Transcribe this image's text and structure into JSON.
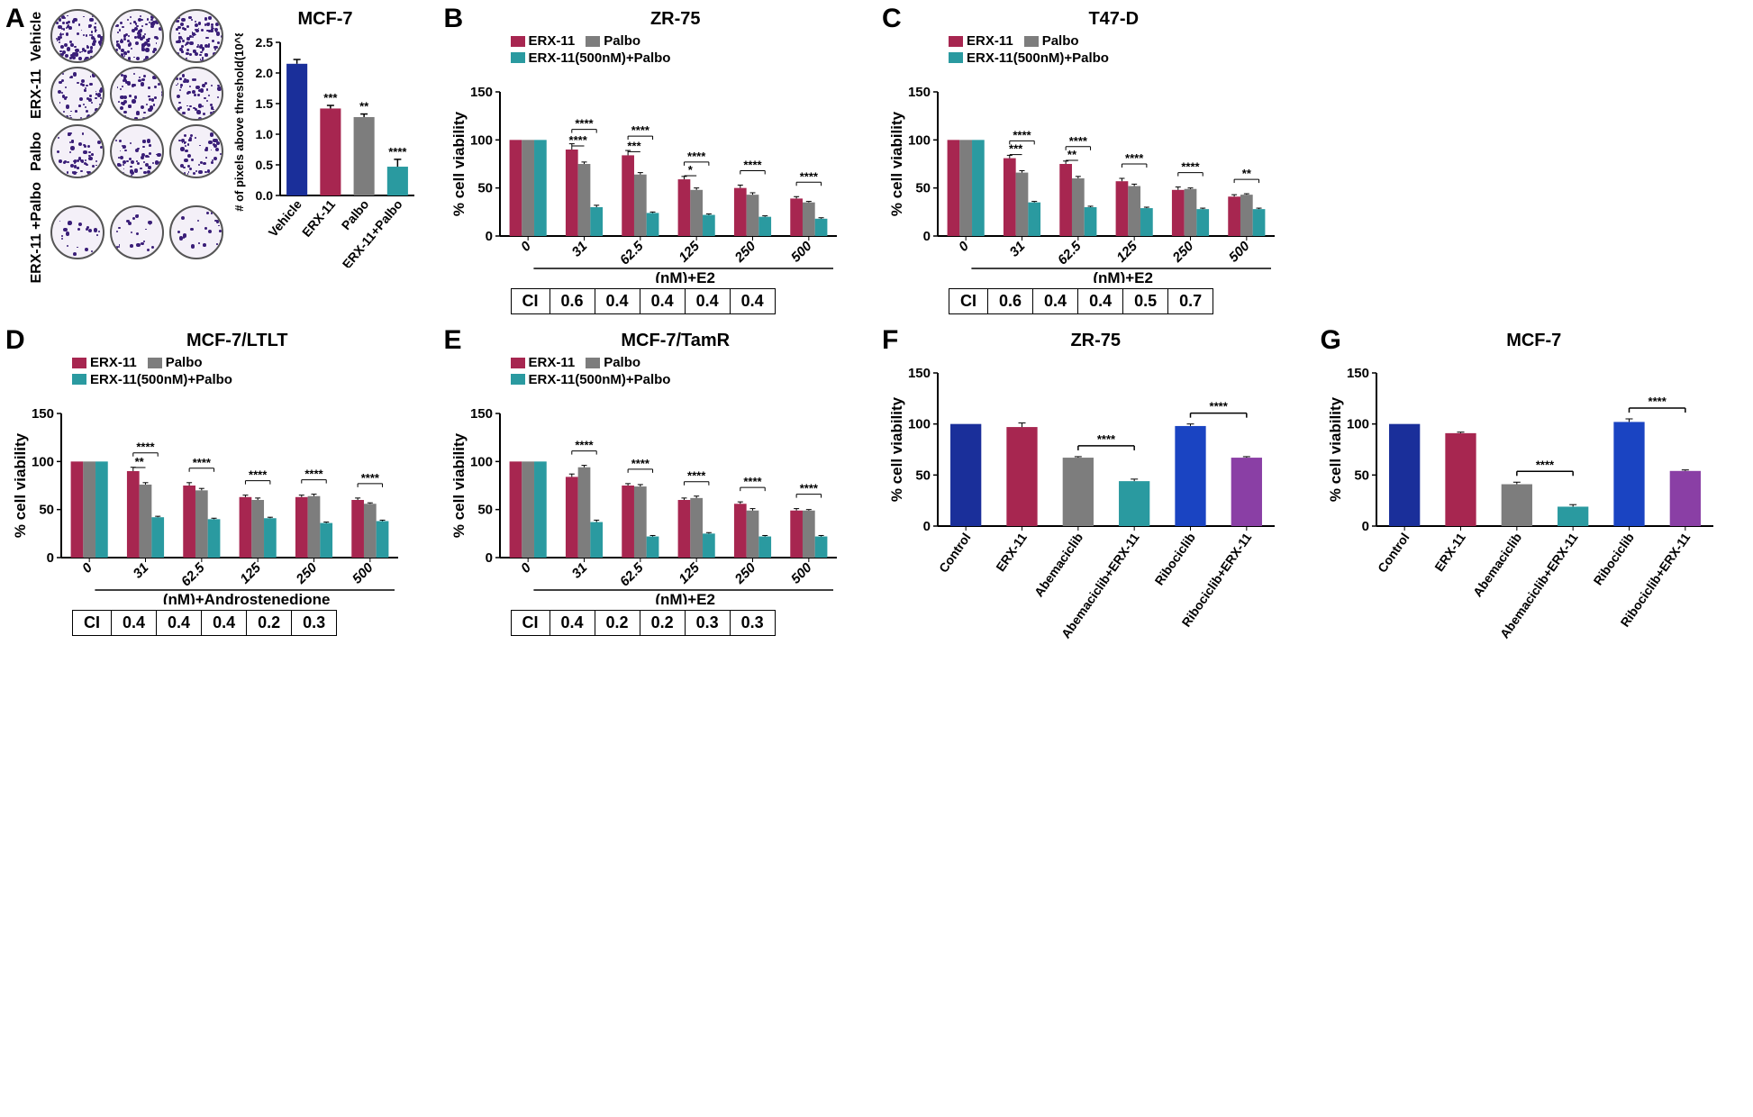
{
  "colors": {
    "erx": "#a72650",
    "palbo": "#7d7d7d",
    "combo": "#2a9aa0",
    "vehicle": "#1a2f9a",
    "ribo": "#1a44c2",
    "riboerx": "#8a3fa5",
    "axis": "#000000",
    "grid": "#cccccc",
    "bg": "#ffffff"
  },
  "panels": {
    "A": {
      "letter": "A",
      "title": "MCF-7",
      "row_labels": [
        "Vehicle",
        "ERX-11",
        "Palbo",
        "ERX-11\n+Palbo"
      ],
      "plate_density": [
        0.9,
        0.55,
        0.5,
        0.18
      ],
      "chart": {
        "ytitle": "# of pixels above threshold(10^8)",
        "ylim": [
          0,
          2.5
        ],
        "ytick_step": 0.5,
        "cats": [
          "Vehicle",
          "ERX-11",
          "Palbo",
          "ERX-11+Palbo"
        ],
        "vals": [
          2.15,
          1.42,
          1.28,
          0.47
        ],
        "errs": [
          0.07,
          0.05,
          0.05,
          0.12
        ],
        "colors": [
          "vehicle",
          "erx",
          "palbo",
          "combo"
        ],
        "sig": [
          "",
          "***",
          "**",
          "****"
        ],
        "bar_width": 0.62
      }
    },
    "B": {
      "letter": "B",
      "title": "ZR-75",
      "legend": [
        [
          "ERX-11",
          "erx"
        ],
        [
          "Palbo",
          "palbo"
        ],
        [
          "ERX-11(500nM)+Palbo",
          "combo"
        ]
      ],
      "ytitle": "% cell viability",
      "ylim": [
        0,
        150
      ],
      "ytick_step": 50,
      "xcats": [
        "0",
        "31",
        "62.5",
        "125",
        "250",
        "500"
      ],
      "xcap": "(nM)+E2",
      "series": {
        "erx": [
          100,
          90,
          84,
          59,
          50,
          39
        ],
        "palbo": [
          100,
          75,
          64,
          48,
          43,
          35
        ],
        "combo": [
          100,
          30,
          24,
          22,
          20,
          18
        ]
      },
      "errs": {
        "erx": [
          0,
          6,
          5,
          3,
          3,
          2
        ],
        "palbo": [
          0,
          2,
          2,
          2,
          2,
          1
        ],
        "combo": [
          0,
          2,
          1,
          1,
          1,
          1
        ]
      },
      "sig_top": [
        "",
        "****",
        "****",
        "****",
        "****",
        "****"
      ],
      "sig_bot": [
        "",
        "****",
        "***",
        "*",
        "",
        ""
      ],
      "ci": [
        "CI",
        "0.6",
        "0.4",
        "0.4",
        "0.4",
        "0.4"
      ]
    },
    "C": {
      "letter": "C",
      "title": "T47-D",
      "legend": [
        [
          "ERX-11",
          "erx"
        ],
        [
          "Palbo",
          "palbo"
        ],
        [
          "ERX-11(500nM)+Palbo",
          "combo"
        ]
      ],
      "ytitle": "% cell viability",
      "ylim": [
        0,
        150
      ],
      "ytick_step": 50,
      "xcats": [
        "0",
        "31",
        "62.5",
        "125",
        "250",
        "500"
      ],
      "xcap": "(nM)+E2",
      "series": {
        "erx": [
          100,
          81,
          75,
          57,
          48,
          41
        ],
        "palbo": [
          100,
          66,
          60,
          52,
          49,
          43
        ],
        "combo": [
          100,
          35,
          30,
          29,
          28,
          28
        ]
      },
      "errs": {
        "erx": [
          0,
          3,
          3,
          3,
          3,
          2
        ],
        "palbo": [
          0,
          2,
          2,
          2,
          1,
          1
        ],
        "combo": [
          0,
          1,
          1,
          1,
          1,
          1
        ]
      },
      "sig_top": [
        "",
        "****",
        "****",
        "****",
        "****",
        "**"
      ],
      "sig_bot": [
        "",
        "***",
        "**",
        "",
        "",
        ""
      ],
      "ci": [
        "CI",
        "0.6",
        "0.4",
        "0.4",
        "0.5",
        "0.7"
      ]
    },
    "D": {
      "letter": "D",
      "title": "MCF-7/LTLT",
      "legend": [
        [
          "ERX-11",
          "erx"
        ],
        [
          "Palbo",
          "palbo"
        ],
        [
          "ERX-11(500nM)+Palbo",
          "combo"
        ]
      ],
      "ytitle": "% cell viability",
      "ylim": [
        0,
        150
      ],
      "ytick_step": 50,
      "xcats": [
        "0",
        "31",
        "62.5",
        "125",
        "250",
        "500"
      ],
      "xcap": "(nM)+Androstenedione",
      "series": {
        "erx": [
          100,
          90,
          75,
          63,
          63,
          60
        ],
        "palbo": [
          100,
          76,
          70,
          60,
          64,
          56
        ],
        "combo": [
          100,
          42,
          40,
          41,
          36,
          38
        ]
      },
      "errs": {
        "erx": [
          0,
          4,
          3,
          2,
          2,
          2
        ],
        "palbo": [
          0,
          2,
          2,
          2,
          2,
          1
        ],
        "combo": [
          0,
          1,
          1,
          1,
          1,
          1
        ]
      },
      "sig_top": [
        "",
        "****",
        "****",
        "****",
        "****",
        "****"
      ],
      "sig_bot": [
        "",
        "**",
        "",
        "",
        "",
        ""
      ],
      "ci": [
        "CI",
        "0.4",
        "0.4",
        "0.4",
        "0.2",
        "0.3"
      ]
    },
    "E": {
      "letter": "E",
      "title": "MCF-7/TamR",
      "legend": [
        [
          "ERX-11",
          "erx"
        ],
        [
          "Palbo",
          "palbo"
        ],
        [
          "ERX-11(500nM)+Palbo",
          "combo"
        ]
      ],
      "ytitle": "% cell viability",
      "ylim": [
        0,
        150
      ],
      "ytick_step": 50,
      "xcats": [
        "0",
        "31",
        "62.5",
        "125",
        "250",
        "500"
      ],
      "xcap": "(nM)+E2",
      "series": {
        "erx": [
          100,
          84,
          75,
          60,
          56,
          49
        ],
        "palbo": [
          100,
          94,
          74,
          62,
          49,
          49
        ],
        "combo": [
          100,
          37,
          22,
          25,
          22,
          22
        ]
      },
      "errs": {
        "erx": [
          0,
          3,
          2,
          2,
          2,
          2
        ],
        "palbo": [
          0,
          2,
          2,
          2,
          2,
          1
        ],
        "combo": [
          0,
          2,
          1,
          1,
          1,
          1
        ]
      },
      "sig_top": [
        "",
        "****",
        "****",
        "****",
        "****",
        "****"
      ],
      "sig_bot": [
        "",
        "",
        "",
        "",
        "",
        ""
      ],
      "ci": [
        "CI",
        "0.4",
        "0.2",
        "0.2",
        "0.3",
        "0.3"
      ]
    },
    "F": {
      "letter": "F",
      "title": "ZR-75",
      "ytitle": "% cell viability",
      "ylim": [
        0,
        150
      ],
      "ytick_step": 50,
      "cats": [
        "Control",
        "ERX-11",
        "Abemaciclib",
        "Abemaciclib+ERX-11",
        "Ribociclib",
        "Ribociclib+ERX-11"
      ],
      "vals": [
        100,
        97,
        67,
        44,
        98,
        67
      ],
      "errs": [
        0,
        4,
        1,
        2,
        2,
        1
      ],
      "colors": [
        "vehicle",
        "erx",
        "palbo",
        "combo",
        "ribo",
        "riboerx"
      ],
      "sig_pairs": [
        [
          2,
          3,
          "****"
        ],
        [
          4,
          5,
          "****"
        ]
      ]
    },
    "G": {
      "letter": "G",
      "title": "MCF-7",
      "ytitle": "% cell viability",
      "ylim": [
        0,
        150
      ],
      "ytick_step": 50,
      "cats": [
        "Control",
        "ERX-11",
        "Abemaciclib",
        "Abemaciclib+ERX-11",
        "Ribociclib",
        "Ribociclib+ERX-11"
      ],
      "vals": [
        100,
        91,
        41,
        19,
        102,
        54
      ],
      "errs": [
        0,
        1,
        2,
        2,
        3,
        1
      ],
      "colors": [
        "vehicle",
        "erx",
        "palbo",
        "combo",
        "ribo",
        "riboerx"
      ],
      "sig_pairs": [
        [
          2,
          3,
          "****"
        ],
        [
          4,
          5,
          "****"
        ]
      ]
    }
  },
  "fontsize": {
    "axis": 15,
    "title": 20,
    "ytitle": 18,
    "cat": 15
  }
}
